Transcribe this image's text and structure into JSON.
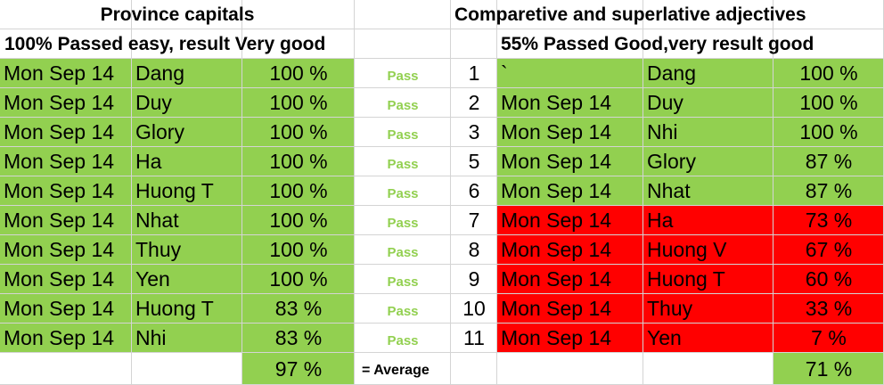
{
  "left": {
    "title": "Province capitals",
    "subtitle": "100% Passed easy, result Very good",
    "rows": [
      [
        "Mon Sep 14",
        "Dang",
        "100 %",
        "Pass"
      ],
      [
        "Mon Sep 14",
        "Duy",
        "100 %",
        "Pass"
      ],
      [
        "Mon Sep 14",
        "Glory",
        "100 %",
        "Pass"
      ],
      [
        "Mon Sep 14",
        "Ha",
        "100 %",
        "Pass"
      ],
      [
        "Mon Sep 14",
        "Huong T",
        "100 %",
        "Pass"
      ],
      [
        "Mon Sep 14",
        "Nhat",
        "100 %",
        "Pass"
      ],
      [
        "Mon Sep 14",
        "Thuy",
        "100 %",
        "Pass"
      ],
      [
        "Mon Sep 14",
        "Yen",
        "100 %",
        "Pass"
      ],
      [
        "Mon Sep 14",
        "Huong T",
        "83 %",
        "Pass"
      ],
      [
        "Mon Sep 14",
        "Nhi",
        "83 %",
        "Pass"
      ]
    ],
    "average": "97 %",
    "average_label": "= Average"
  },
  "right": {
    "title": "Comparetive and superlative adjectives",
    "subtitle": "55% Passed Good,very  result good",
    "rows": [
      [
        1,
        "`",
        "Dang",
        "100 %"
      ],
      [
        2,
        "Mon Sep 14",
        "Duy",
        "100 %"
      ],
      [
        3,
        "Mon Sep 14",
        "Nhi",
        "100 %"
      ],
      [
        5,
        "Mon Sep 14",
        "Glory",
        "87 %"
      ],
      [
        6,
        "Mon Sep 14",
        "Nhat",
        "87 %"
      ],
      [
        7,
        "Mon Sep 14",
        "Ha",
        "73 %"
      ],
      [
        8,
        "Mon Sep 14",
        "Huong V",
        "67 %"
      ],
      [
        9,
        "Mon Sep 14",
        "Huong T",
        "60 %"
      ],
      [
        10,
        "Mon Sep 14",
        "Thuy",
        "33 %"
      ],
      [
        11,
        "Mon Sep 14",
        "Yen",
        "7 %"
      ]
    ],
    "row_colors": [
      "#92d050",
      "#92d050",
      "#92d050",
      "#92d050",
      "#92d050",
      "#ff0000",
      "#ff0000",
      "#ff0000",
      "#ff0000",
      "#ff0000"
    ],
    "average": "71 %"
  },
  "fill_color": "#92d050",
  "pass_color": "#92d050"
}
